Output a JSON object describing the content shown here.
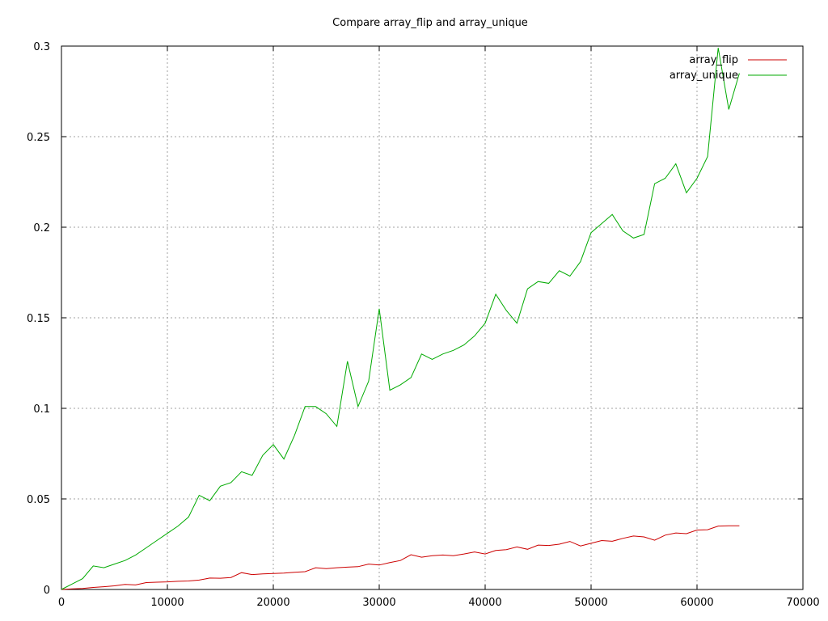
{
  "chart_data": {
    "type": "line",
    "title": "Compare array_flip and array_unique",
    "xlabel": "",
    "ylabel": "",
    "xlim": [
      0,
      70000
    ],
    "ylim": [
      0,
      0.3
    ],
    "x_ticks": [
      0,
      10000,
      20000,
      30000,
      40000,
      50000,
      60000,
      70000
    ],
    "y_ticks": [
      0,
      0.05,
      0.1,
      0.15,
      0.2,
      0.25,
      0.3
    ],
    "x_tick_labels": [
      "0",
      "10000",
      "20000",
      "30000",
      "40000",
      "50000",
      "60000",
      "70000"
    ],
    "y_tick_labels": [
      "0",
      "0.05",
      "0.1",
      "0.15",
      "0.2",
      "0.25",
      "0.3"
    ],
    "grid": true,
    "legend_position": "top-right",
    "series": [
      {
        "name": "array_flip",
        "color": "#cc0000",
        "x": [
          0,
          1000,
          2000,
          3000,
          4000,
          5000,
          6000,
          7000,
          8000,
          9000,
          10000,
          11000,
          12000,
          13000,
          14000,
          15000,
          16000,
          17000,
          18000,
          19000,
          20000,
          21000,
          22000,
          23000,
          24000,
          25000,
          26000,
          27000,
          28000,
          29000,
          30000,
          31000,
          32000,
          33000,
          34000,
          35000,
          36000,
          37000,
          38000,
          39000,
          40000,
          41000,
          42000,
          43000,
          44000,
          45000,
          46000,
          47000,
          48000,
          49000,
          50000,
          51000,
          52000,
          53000,
          54000,
          55000,
          56000,
          57000,
          58000,
          59000,
          60000,
          61000,
          62000,
          63000,
          64000
        ],
        "values": [
          0,
          0.0003,
          0.0006,
          0.0011,
          0.0015,
          0.002,
          0.0028,
          0.0025,
          0.0038,
          0.004,
          0.0042,
          0.0045,
          0.0047,
          0.0052,
          0.0063,
          0.0062,
          0.0066,
          0.0093,
          0.0082,
          0.0086,
          0.0088,
          0.009,
          0.0095,
          0.0098,
          0.012,
          0.0115,
          0.012,
          0.0123,
          0.0126,
          0.014,
          0.0135,
          0.0148,
          0.016,
          0.0192,
          0.0178,
          0.0186,
          0.019,
          0.0186,
          0.0196,
          0.0207,
          0.0196,
          0.0215,
          0.022,
          0.0235,
          0.0222,
          0.0245,
          0.0243,
          0.025,
          0.0265,
          0.024,
          0.0255,
          0.027,
          0.0266,
          0.0282,
          0.0295,
          0.029,
          0.0272,
          0.03,
          0.0312,
          0.0308,
          0.0328,
          0.033,
          0.035,
          0.0352,
          0.0352
        ]
      },
      {
        "name": "array_unique",
        "color": "#00aa00",
        "x": [
          0,
          1000,
          2000,
          3000,
          4000,
          5000,
          6000,
          7000,
          8000,
          9000,
          10000,
          11000,
          12000,
          13000,
          14000,
          15000,
          16000,
          17000,
          18000,
          19000,
          20000,
          21000,
          22000,
          23000,
          24000,
          25000,
          26000,
          27000,
          28000,
          29000,
          30000,
          31000,
          32000,
          33000,
          34000,
          35000,
          36000,
          37000,
          38000,
          39000,
          40000,
          41000,
          42000,
          43000,
          44000,
          45000,
          46000,
          47000,
          48000,
          49000,
          50000,
          51000,
          52000,
          53000,
          54000,
          55000,
          56000,
          57000,
          58000,
          59000,
          60000,
          61000,
          62000,
          63000,
          64000
        ],
        "values": [
          0,
          0.003,
          0.006,
          0.013,
          0.012,
          0.014,
          0.016,
          0.019,
          0.023,
          0.027,
          0.031,
          0.035,
          0.04,
          0.052,
          0.049,
          0.057,
          0.059,
          0.065,
          0.063,
          0.074,
          0.08,
          0.072,
          0.085,
          0.101,
          0.101,
          0.097,
          0.09,
          0.126,
          0.101,
          0.115,
          0.155,
          0.11,
          0.113,
          0.117,
          0.13,
          0.127,
          0.13,
          0.132,
          0.135,
          0.14,
          0.147,
          0.163,
          0.154,
          0.147,
          0.166,
          0.17,
          0.169,
          0.176,
          0.173,
          0.181,
          0.197,
          0.202,
          0.207,
          0.198,
          0.194,
          0.196,
          0.224,
          0.227,
          0.235,
          0.219,
          0.227,
          0.239,
          0.299,
          0.265,
          0.285
        ]
      }
    ]
  }
}
